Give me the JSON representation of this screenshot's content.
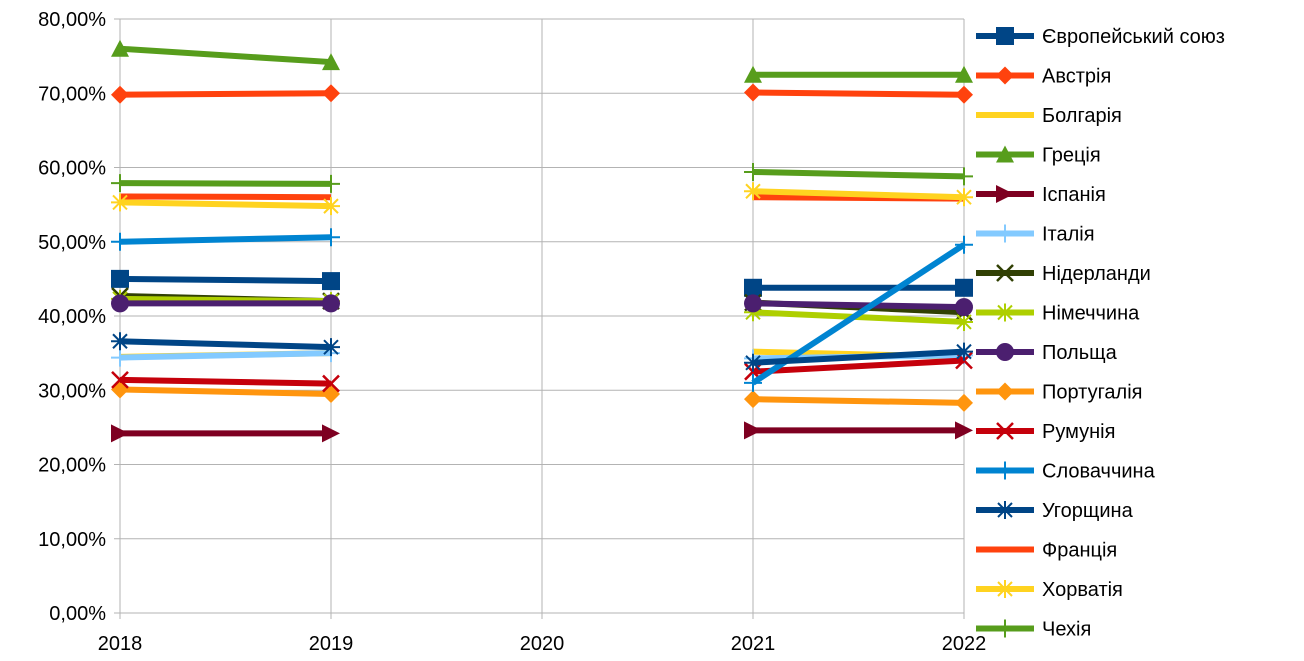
{
  "chart_data": {
    "type": "line",
    "title": "",
    "xlabel": "",
    "ylabel": "",
    "x": [
      "2018",
      "2019",
      "2020",
      "2021",
      "2022"
    ],
    "ylim": [
      0,
      0.8
    ],
    "yticks": [
      "0,00%",
      "10,00%",
      "20,00%",
      "30,00%",
      "40,00%",
      "50,00%",
      "60,00%",
      "70,00%",
      "80,00%"
    ],
    "grid": "horizontal",
    "legend_position": "right",
    "series": [
      {
        "name": "Європейський союз",
        "color": "#004586",
        "marker": "square",
        "values": [
          0.45,
          0.447,
          null,
          0.438,
          0.438
        ]
      },
      {
        "name": "Австрія",
        "color": "#ff420e",
        "marker": "diamond",
        "values": [
          0.698,
          0.7,
          null,
          0.701,
          0.698
        ]
      },
      {
        "name": "Болгарія",
        "color": "#ffd320",
        "marker": "none",
        "values": [
          0.345,
          0.35,
          null,
          0.352,
          0.345
        ]
      },
      {
        "name": "Греція",
        "color": "#579d1c",
        "marker": "triangle",
        "values": [
          0.76,
          0.742,
          null,
          0.725,
          0.725
        ]
      },
      {
        "name": "Іспанія",
        "color": "#7e0021",
        "marker": "arrow",
        "values": [
          0.242,
          0.242,
          null,
          0.246,
          0.246
        ]
      },
      {
        "name": "Італія",
        "color": "#83caff",
        "marker": "plus",
        "values": [
          0.344,
          0.35,
          null,
          0.343,
          0.347
        ]
      },
      {
        "name": "Нідерланди",
        "color": "#314004",
        "marker": "x",
        "values": [
          0.427,
          0.42,
          null,
          0.418,
          0.405
        ]
      },
      {
        "name": "Німеччина",
        "color": "#aecf00",
        "marker": "star",
        "values": [
          0.423,
          0.42,
          null,
          0.405,
          0.392
        ]
      },
      {
        "name": "Польща",
        "color": "#4b1f6f",
        "marker": "circle",
        "values": [
          0.417,
          0.417,
          null,
          0.417,
          0.412
        ]
      },
      {
        "name": "Португалія",
        "color": "#ff950e",
        "marker": "diamond",
        "values": [
          0.301,
          0.295,
          null,
          0.288,
          0.283
        ]
      },
      {
        "name": "Румунія",
        "color": "#c5000b",
        "marker": "x",
        "values": [
          0.314,
          0.309,
          null,
          0.325,
          0.34
        ]
      },
      {
        "name": "Словаччина",
        "color": "#0084d1",
        "marker": "plus",
        "values": [
          0.5,
          0.506,
          null,
          0.31,
          0.496
        ]
      },
      {
        "name": "Угорщина",
        "color": "#004586",
        "marker": "star",
        "values": [
          0.366,
          0.358,
          null,
          0.337,
          0.352
        ]
      },
      {
        "name": "Франція",
        "color": "#ff420e",
        "marker": "none",
        "values": [
          0.561,
          0.56,
          null,
          0.56,
          0.558
        ]
      },
      {
        "name": "Хорватія",
        "color": "#ffd320",
        "marker": "star",
        "values": [
          0.553,
          0.548,
          null,
          0.568,
          0.56
        ]
      },
      {
        "name": "Чехія",
        "color": "#579d1c",
        "marker": "plus",
        "values": [
          0.579,
          0.578,
          null,
          0.594,
          0.588
        ]
      }
    ]
  }
}
